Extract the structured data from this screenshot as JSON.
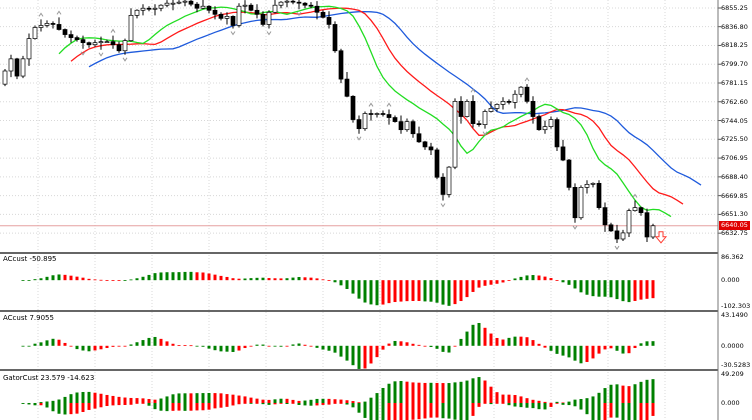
{
  "chart_data": {
    "type": "candlestick",
    "price_axis": {
      "ticks": [
        "6855.25",
        "6836.80",
        "6818.25",
        "6799.70",
        "6781.15",
        "6762.60",
        "6744.05",
        "6725.50",
        "6706.95",
        "6688.40",
        "6669.85",
        "6651.30",
        "6632.75"
      ],
      "current_price": "6640.05",
      "current_price_color": "#e00000"
    },
    "close": [
      6793,
      6805,
      6788,
      6805,
      6825,
      6836,
      6838,
      6840,
      6839,
      6834,
      6829,
      6826,
      6824,
      6821,
      6819,
      6821,
      6822,
      6822,
      6819,
      6813,
      6823,
      6848,
      6853,
      6855,
      6854,
      6855,
      6858,
      6860,
      6860,
      6861,
      6862,
      6859,
      6855,
      6857,
      6853,
      6849,
      6845,
      6847,
      6838,
      6857,
      6858,
      6853,
      6849,
      6839,
      6851,
      6858,
      6861,
      6862,
      6861,
      6860,
      6858,
      6857,
      6851,
      6846,
      6839,
      6813,
      6785,
      6768,
      6745,
      6736,
      6751,
      6750,
      6751,
      6750,
      6747,
      6743,
      6735,
      6743,
      6731,
      6723,
      6718,
      6715,
      6688,
      6671,
      6698,
      6763,
      6748,
      6763,
      6741,
      6740,
      6753,
      6756,
      6760,
      6763,
      6762,
      6770,
      6777,
      6763,
      6748,
      6735,
      6738,
      6745,
      6718,
      6705,
      6678,
      6648,
      6678,
      6681,
      6682,
      6658,
      6641,
      6635,
      6627,
      6633,
      6655,
      6658,
      6653,
      6629,
      6640.05
    ],
    "alligator": {
      "jaw_color": "#1e5adc",
      "teeth_color": "#ff1a1a",
      "lips_color": "#22dd22"
    },
    "bull_color": "#ffffff",
    "bear_color": "#000000",
    "indicators": [
      {
        "label": "ACcust -50.895",
        "ticks": [
          "86.362",
          "0.000",
          "-102.303"
        ],
        "range": [
          -102.303,
          86.362
        ],
        "up_color": "#008000",
        "down_color": "#ff0000"
      },
      {
        "label": "ACcust 7.9055",
        "ticks": [
          "43.1490",
          "0.0000",
          "-30.5283"
        ],
        "range": [
          -30.5283,
          43.149
        ],
        "up_color": "#008000",
        "down_color": "#ff0000"
      },
      {
        "label": "GatorCust 23.579 -14.623",
        "ticks": [
          "49.209",
          "0.000"
        ],
        "range": [
          -27,
          49.209
        ],
        "up_color": "#008000",
        "down_color": "#ff0000"
      }
    ],
    "signal": {
      "icon": "down-arrow-outline-icon",
      "color": "#ff3b30"
    }
  }
}
